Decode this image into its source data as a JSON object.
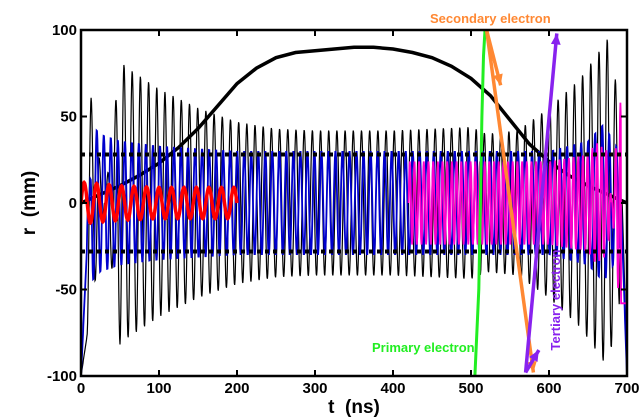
{
  "chart_data": {
    "type": "line",
    "title": "",
    "xlabel": "t  (ns)",
    "ylabel": "r  (mm)",
    "xlim": [
      0,
      700
    ],
    "ylim": [
      -100,
      100
    ],
    "xticks": [
      "0",
      "100",
      "200",
      "300",
      "400",
      "500",
      "600",
      "700"
    ],
    "yticks": [
      "100",
      "50",
      "0",
      "-50",
      "-100"
    ],
    "grid": false,
    "series": [
      {
        "kind": "envelope",
        "color": "#000000",
        "x": [
          0,
          25,
          50,
          75,
          100,
          125,
          150,
          175,
          200,
          225,
          250,
          275,
          300,
          325,
          350,
          375,
          400,
          425,
          450,
          475,
          500,
          525,
          550,
          575,
          600,
          625,
          650,
          675,
          700
        ],
        "values": [
          0,
          5,
          10,
          16,
          23,
          32,
          43,
          56,
          69,
          78,
          84,
          87,
          88,
          89,
          90,
          90,
          89,
          87,
          84,
          79,
          72,
          62,
          48,
          34,
          24,
          16,
          10,
          5,
          0
        ]
      },
      {
        "kind": "oscillation",
        "color": "#000000",
        "x": [
          0,
          20,
          40,
          50,
          60,
          80,
          100,
          150,
          200,
          250,
          300,
          350,
          400,
          450,
          500,
          520,
          560,
          600,
          640,
          660,
          675,
          690,
          700
        ],
        "values": [
          -100,
          -40,
          40,
          82,
          78,
          72,
          66,
          55,
          47,
          43,
          42,
          42,
          42,
          43,
          44,
          40,
          42,
          55,
          72,
          85,
          95,
          60,
          -95
        ]
      },
      {
        "kind": "oscillation",
        "color": "#0000cc",
        "x": [
          0,
          15,
          25,
          50,
          100,
          200,
          300,
          400,
          420,
          500,
          600,
          650,
          670,
          690,
          700
        ],
        "values": [
          -100,
          45,
          40,
          36,
          33,
          30,
          30,
          30,
          30,
          30,
          30,
          36,
          46,
          30,
          -100
        ]
      },
      {
        "kind": "oscillation",
        "color": "#ff00cc",
        "x": [
          420,
          500,
          600,
          650,
          660,
          675,
          690,
          700
        ],
        "values": [
          24,
          24,
          24,
          28,
          35,
          30,
          -58,
          -58
        ]
      },
      {
        "kind": "oscillation",
        "color": "#ff0000",
        "x": [
          0,
          50,
          100,
          150,
          200
        ],
        "values": [
          12,
          10,
          9,
          9,
          9
        ]
      },
      {
        "kind": "line",
        "color": "#22ee22",
        "x": [
          505,
          510,
          512,
          514,
          516,
          518
        ],
        "values": [
          -100,
          -50,
          0,
          50,
          85,
          100
        ]
      }
    ],
    "reference_lines": [
      {
        "y": 28,
        "style": "dotted",
        "color": "#000000"
      },
      {
        "y": -28,
        "style": "dotted",
        "color": "#000000"
      }
    ],
    "annotations": [
      {
        "text": "Secondary electron",
        "color": "#ff8833"
      },
      {
        "text": "Primary electron",
        "color": "#22ee22"
      },
      {
        "text": "Tertiary electron",
        "color": "#8822ee"
      }
    ],
    "arrows": [
      {
        "color": "#ff8833",
        "from": [
          520,
          100
        ],
        "to": [
          580,
          -98
        ]
      },
      {
        "color": "#ff8833",
        "from": [
          520,
          100
        ],
        "to": [
          538,
          68
        ]
      },
      {
        "color": "#8822ee",
        "from": [
          570,
          -98
        ],
        "to": [
          610,
          98
        ]
      },
      {
        "color": "#8822ee",
        "from": [
          570,
          -98
        ],
        "to": [
          587,
          -85
        ]
      }
    ]
  }
}
